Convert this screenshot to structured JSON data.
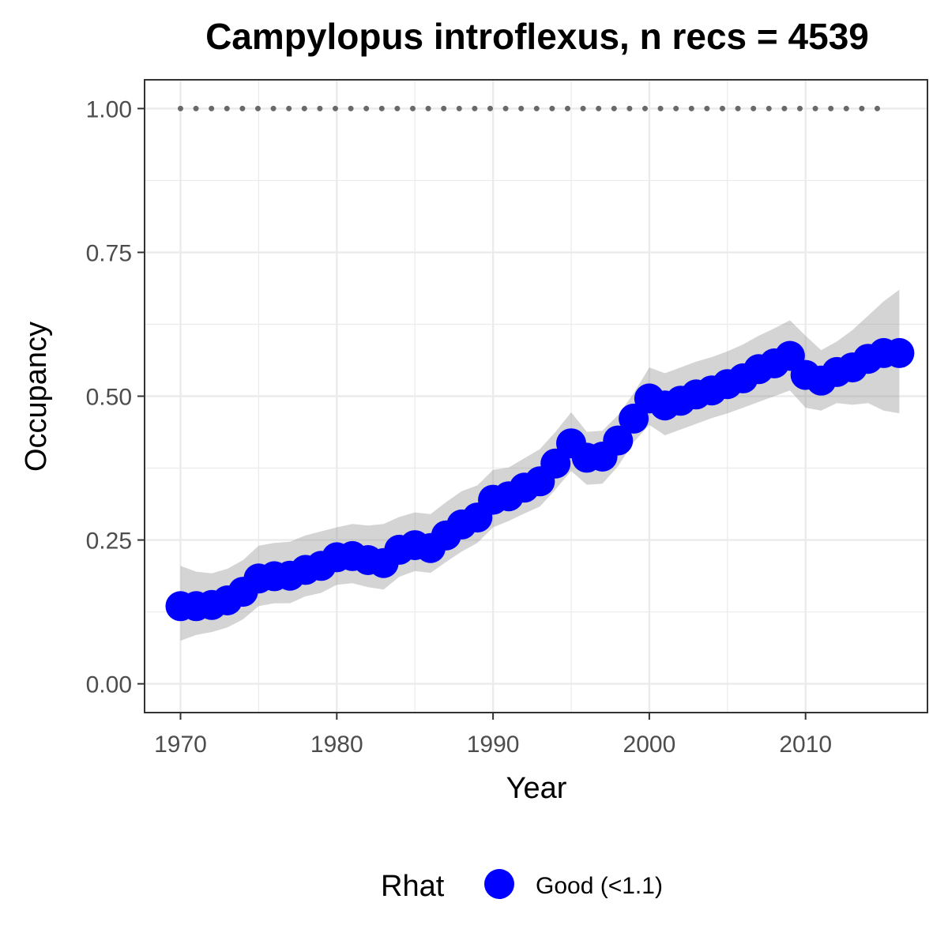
{
  "chart_data": {
    "type": "line",
    "title": "Campylopus introflexus, n recs = 4539",
    "xlabel": "Year",
    "ylabel": "Occupancy",
    "xlim": [
      1967.7,
      2017.8
    ],
    "ylim": [
      -0.05,
      1.05
    ],
    "x_ticks": [
      1970,
      1980,
      1990,
      2000,
      2010
    ],
    "x_tick_labels": [
      "1970",
      "1980",
      "1990",
      "2000",
      "2010"
    ],
    "y_ticks": [
      0,
      0.25,
      0.5,
      0.75,
      1.0
    ],
    "y_tick_labels": [
      "0.00",
      "0.25",
      "0.50",
      "0.75",
      "1.00"
    ],
    "grid": true,
    "legend": {
      "title": "Rhat",
      "placement": "bottom",
      "entries": [
        {
          "label": "Good (<1.1)",
          "color": "#0000FF"
        }
      ]
    },
    "colors": {
      "points": "#0000FF",
      "ribbon": "#999999",
      "reference": "#696969",
      "grid": "#EBEBEB",
      "border": "#333333"
    },
    "x": [
      1970,
      1971,
      1972,
      1973,
      1974,
      1975,
      1976,
      1977,
      1978,
      1979,
      1980,
      1981,
      1982,
      1983,
      1984,
      1985,
      1986,
      1987,
      1988,
      1989,
      1990,
      1991,
      1992,
      1993,
      1994,
      1995,
      1996,
      1997,
      1998,
      1999,
      2000,
      2001,
      2002,
      2003,
      2004,
      2005,
      2006,
      2007,
      2008,
      2009,
      2010,
      2011,
      2012,
      2013,
      2014,
      2015,
      2016
    ],
    "series": [
      {
        "rhat": "Good (<1.1)",
        "mean": [
          0.135,
          0.135,
          0.137,
          0.145,
          0.16,
          0.183,
          0.187,
          0.188,
          0.198,
          0.205,
          0.22,
          0.222,
          0.215,
          0.21,
          0.233,
          0.241,
          0.236,
          0.258,
          0.277,
          0.289,
          0.32,
          0.326,
          0.341,
          0.352,
          0.383,
          0.418,
          0.393,
          0.395,
          0.423,
          0.461,
          0.496,
          0.484,
          0.492,
          0.503,
          0.51,
          0.521,
          0.531,
          0.547,
          0.557,
          0.57,
          0.537,
          0.527,
          0.542,
          0.55,
          0.565,
          0.575,
          0.575
        ],
        "lower": [
          0.075,
          0.085,
          0.09,
          0.098,
          0.112,
          0.135,
          0.14,
          0.14,
          0.152,
          0.158,
          0.172,
          0.175,
          0.168,
          0.164,
          0.186,
          0.196,
          0.193,
          0.212,
          0.23,
          0.245,
          0.272,
          0.283,
          0.296,
          0.308,
          0.338,
          0.37,
          0.346,
          0.348,
          0.378,
          0.42,
          0.45,
          0.432,
          0.442,
          0.452,
          0.462,
          0.47,
          0.48,
          0.49,
          0.5,
          0.51,
          0.48,
          0.475,
          0.488,
          0.485,
          0.488,
          0.475,
          0.47
        ],
        "upper": [
          0.205,
          0.195,
          0.192,
          0.2,
          0.215,
          0.24,
          0.245,
          0.247,
          0.258,
          0.265,
          0.272,
          0.278,
          0.275,
          0.278,
          0.29,
          0.298,
          0.295,
          0.316,
          0.335,
          0.345,
          0.372,
          0.376,
          0.392,
          0.408,
          0.438,
          0.472,
          0.438,
          0.44,
          0.467,
          0.505,
          0.55,
          0.54,
          0.55,
          0.56,
          0.568,
          0.578,
          0.59,
          0.605,
          0.618,
          0.632,
          0.605,
          0.58,
          0.595,
          0.615,
          0.64,
          0.665,
          0.685
        ]
      }
    ],
    "reference_line": {
      "y": 1.0,
      "x_start": 1970,
      "x_end": 2015
    }
  }
}
